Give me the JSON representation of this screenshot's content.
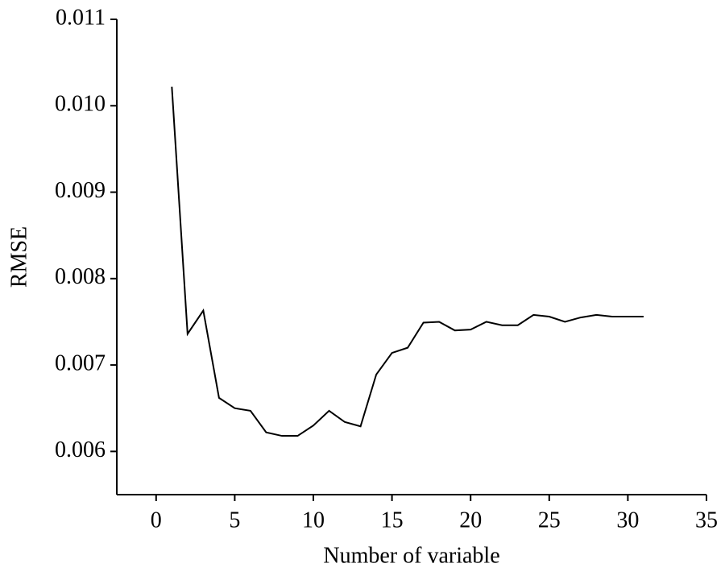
{
  "chart_data": {
    "type": "line",
    "x_label": "Number of variable",
    "y_label": "RMSE",
    "x": [
      1,
      2,
      3,
      4,
      5,
      6,
      7,
      8,
      9,
      10,
      11,
      12,
      13,
      14,
      15,
      16,
      17,
      18,
      19,
      20,
      21,
      22,
      23,
      24,
      25,
      26,
      27,
      28,
      29,
      30,
      31
    ],
    "series": [
      {
        "color": "#000000",
        "values": [
          0.01022,
          0.00736,
          0.00763,
          0.00662,
          0.0065,
          0.00647,
          0.00622,
          0.00618,
          0.00618,
          0.0063,
          0.00647,
          0.00634,
          0.00629,
          0.00689,
          0.00714,
          0.0072,
          0.00749,
          0.0075,
          0.0074,
          0.00741,
          0.0075,
          0.00746,
          0.00746,
          0.00758,
          0.00756,
          0.0075,
          0.00755,
          0.00758,
          0.00756,
          0.00756,
          0.00756
        ]
      }
    ],
    "xlim": [
      -2.5,
      35
    ],
    "xticks": [
      0,
      5,
      10,
      15,
      20,
      25,
      30,
      35
    ],
    "ylim": [
      0.0055,
      0.011
    ],
    "yticks": [
      0.006,
      0.007,
      0.008,
      0.009,
      {
        "value": 0.01,
        "label": "0.010"
      },
      0.011
    ]
  }
}
